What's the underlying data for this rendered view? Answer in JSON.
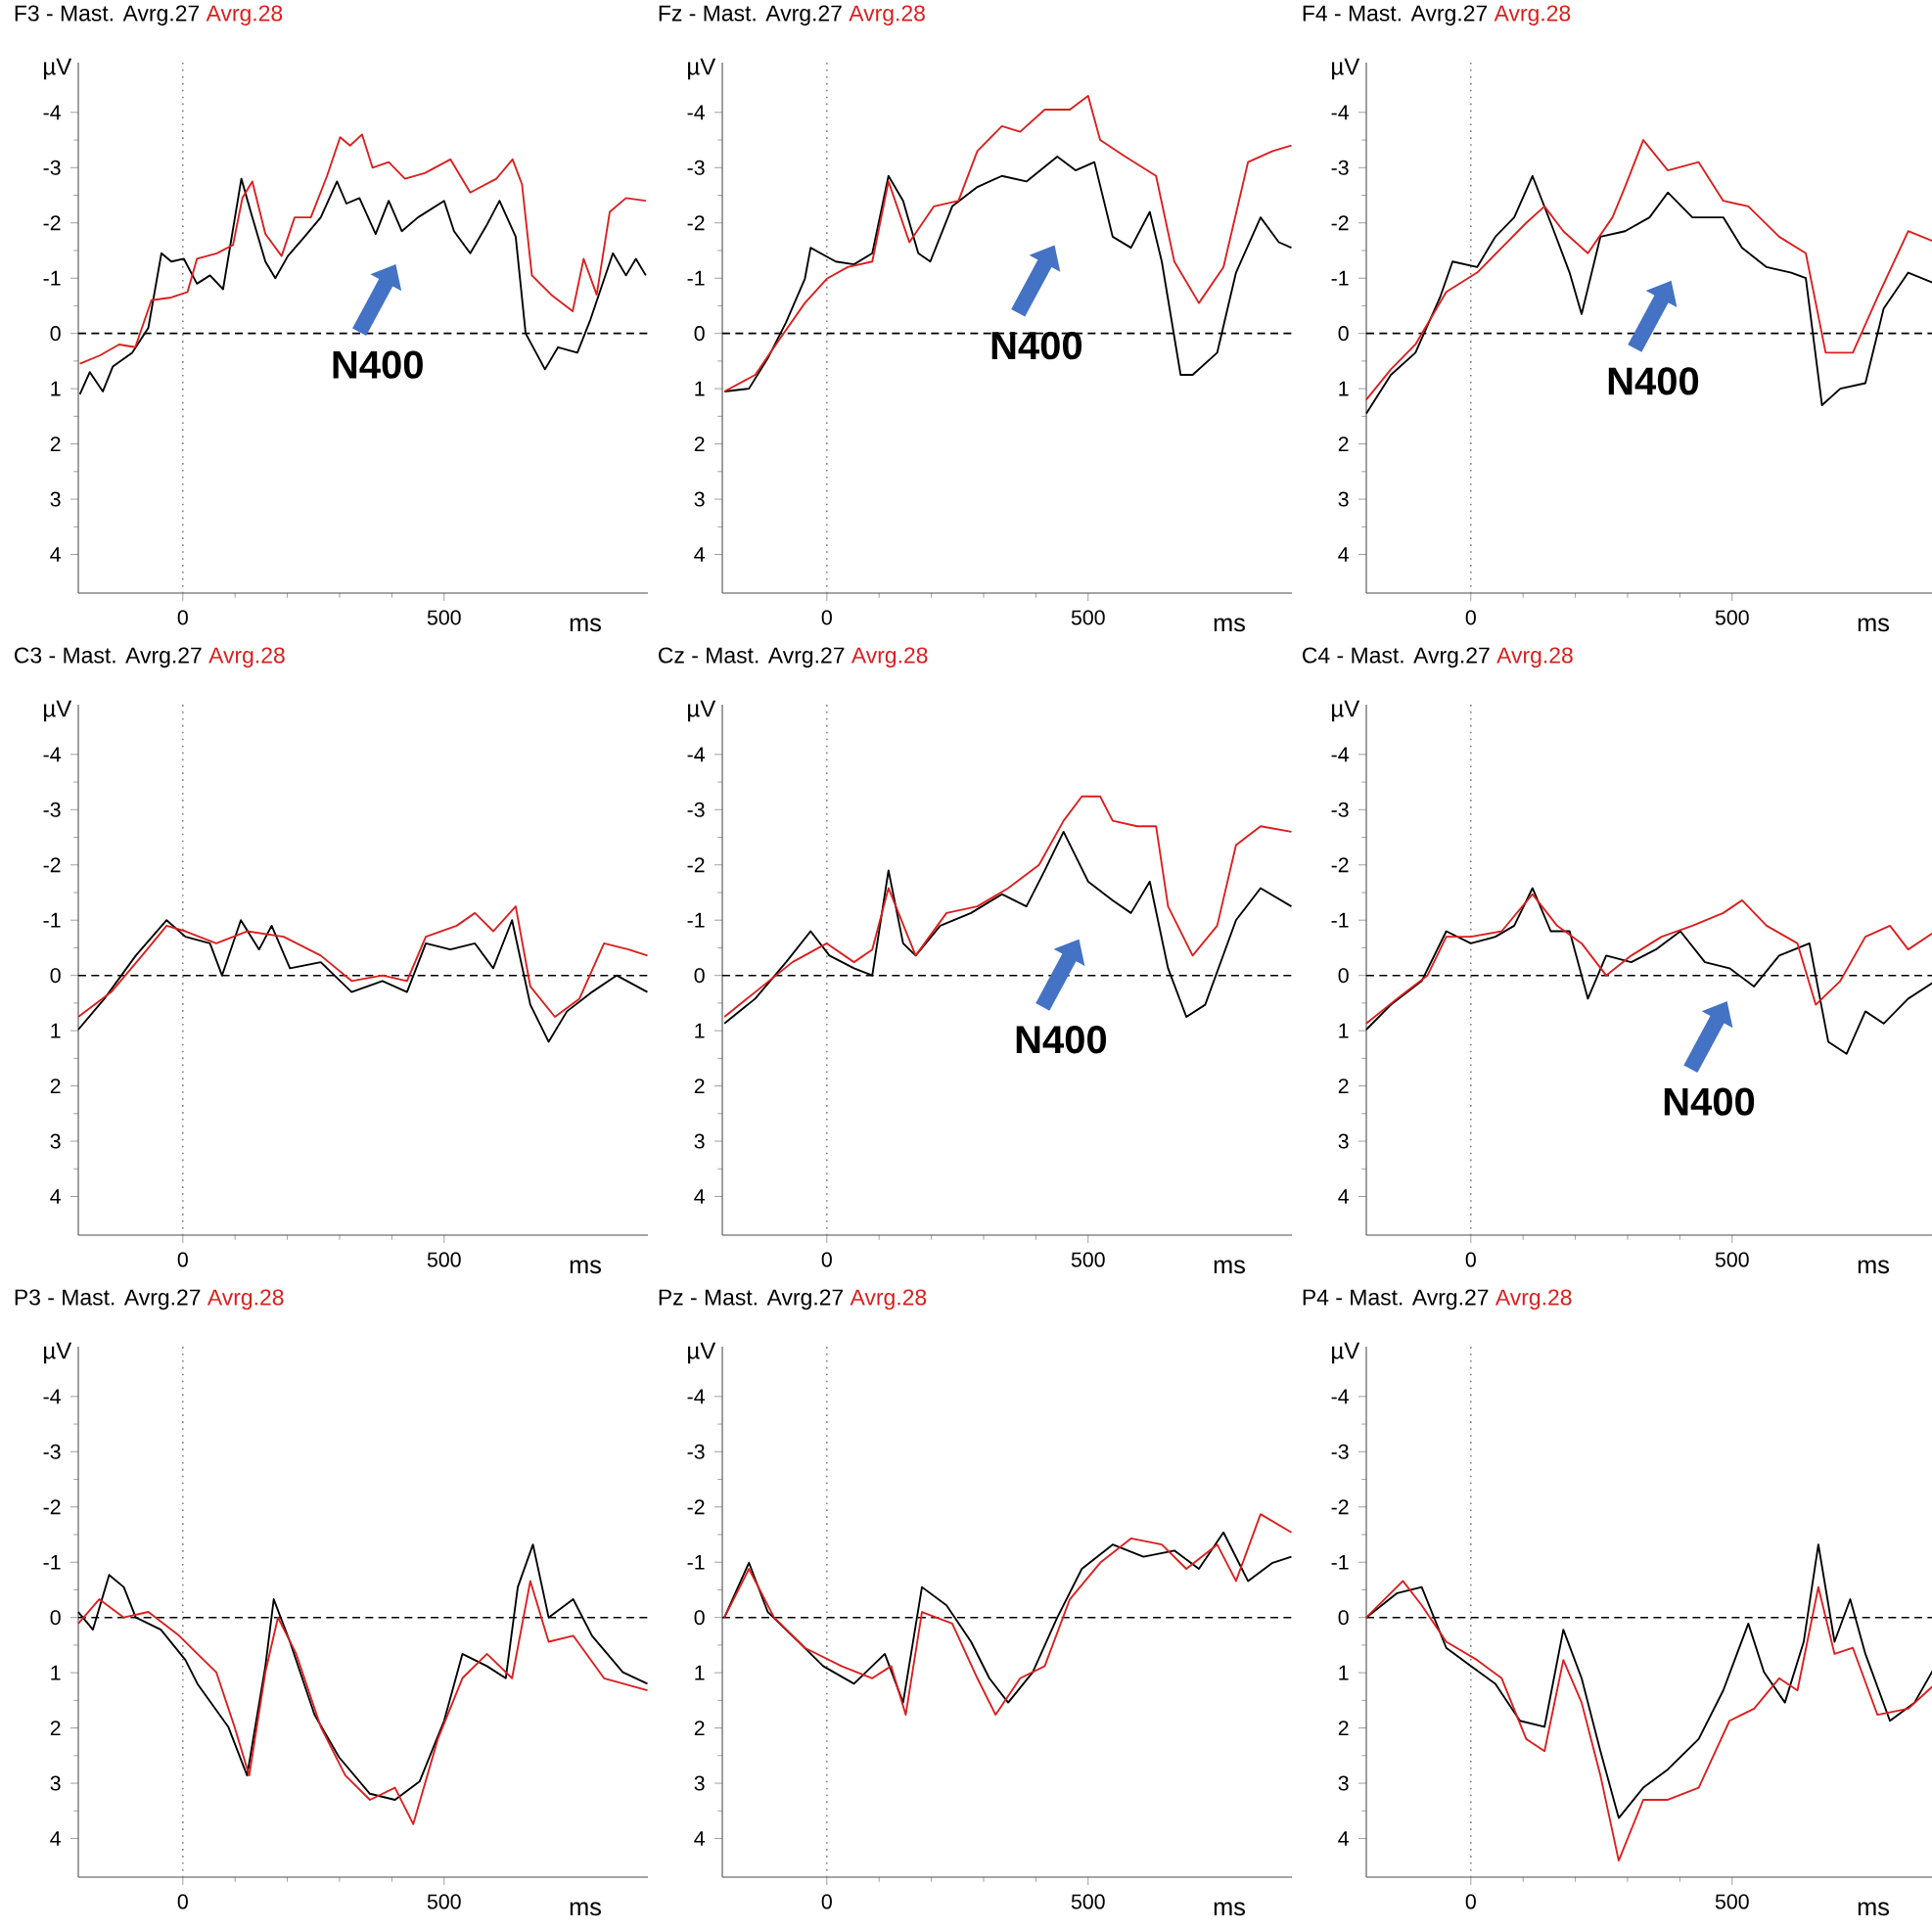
{
  "chart_data": [
    {
      "type": "line",
      "title": "F3 -",
      "xlabel": "ms",
      "ylabel": "µV",
      "xlim": [
        -200,
        890
      ],
      "ylim": [
        4.7,
        -4.9
      ],
      "xticks": [
        0,
        500
      ],
      "yticks": [
        -4,
        -3,
        -2,
        -1,
        0,
        1,
        2,
        3,
        4
      ],
      "ref_lines": [
        {
          "axis": "x",
          "value": 0,
          "color": "#808080",
          "line_style": "dotted"
        },
        {
          "axis": "y",
          "value": 0,
          "color": "#000000",
          "line_style": "dashed"
        }
      ],
      "annotations": [
        "N400"
      ],
      "series": [
        {
          "name": "Mast. Avrg.27",
          "color": "#000000",
          "x": [
            -197,
            -178,
            -153,
            -134,
            -97,
            -66,
            -41,
            -22,
            2,
            27,
            52,
            77,
            112,
            133,
            158,
            177,
            201,
            233,
            264,
            295,
            313,
            338,
            369,
            394,
            419,
            450,
            500,
            519,
            550,
            581,
            606,
            637,
            656,
            693,
            718,
            755,
            780,
            823,
            848,
            867,
            886
          ],
          "values": [
            1.1,
            0.7,
            1.05,
            0.6,
            0.35,
            -0.1,
            -1.45,
            -1.3,
            -1.35,
            -0.9,
            -1.05,
            -0.8,
            -2.8,
            -2.1,
            -1.3,
            -1.0,
            -1.4,
            -1.75,
            -2.1,
            -2.75,
            -2.35,
            -2.45,
            -1.8,
            -2.4,
            -1.85,
            -2.1,
            -2.4,
            -1.85,
            -1.45,
            -1.95,
            -2.4,
            -1.75,
            0,
            0.65,
            0.25,
            0.35,
            -0.25,
            -1.45,
            -1.05,
            -1.35,
            -1.05
          ]
        },
        {
          "name": "Avrg.28",
          "color": "#dc1e1e",
          "x": [
            -197,
            -159,
            -122,
            -91,
            -60,
            -22,
            9,
            27,
            65,
            96,
            114,
            133,
            158,
            189,
            214,
            245,
            276,
            301,
            320,
            343,
            363,
            394,
            425,
            463,
            512,
            550,
            600,
            631,
            649,
            668,
            705,
            746,
            767,
            792,
            817,
            848,
            886
          ],
          "values": [
            0.55,
            0.4,
            0.2,
            0.25,
            -0.6,
            -0.65,
            -0.75,
            -1.35,
            -1.45,
            -1.6,
            -2.45,
            -2.75,
            -1.8,
            -1.4,
            -2.1,
            -2.1,
            -2.85,
            -3.55,
            -3.4,
            -3.6,
            -3.0,
            -3.1,
            -2.8,
            -2.9,
            -3.15,
            -2.55,
            -2.8,
            -3.15,
            -2.7,
            -1.05,
            -0.7,
            -0.4,
            -1.35,
            -0.7,
            -2.2,
            -2.45,
            -2.4
          ]
        }
      ]
    },
    {
      "type": "line",
      "title": "Fz -",
      "xlabel": "ms",
      "ylabel": "µV",
      "xlim": [
        -200,
        890
      ],
      "ylim": [
        4.7,
        -4.9
      ],
      "xticks": [
        0,
        500
      ],
      "yticks": [
        -4,
        -3,
        -2,
        -1,
        0,
        1,
        2,
        3,
        4
      ],
      "ref_lines": [
        {
          "axis": "x",
          "value": 0,
          "color": "#808080",
          "line_style": "dotted"
        },
        {
          "axis": "y",
          "value": 0,
          "color": "#000000",
          "line_style": "dashed"
        }
      ],
      "annotations": [
        "N400"
      ],
      "series": [
        {
          "name": "Mast. Avrg.27",
          "color": "#000000",
          "x": [
            -196,
            -149,
            -113,
            -78,
            -42,
            -31,
            17,
            52,
            87,
            118,
            146,
            175,
            198,
            240,
            288,
            335,
            382,
            441,
            476,
            512,
            547,
            582,
            618,
            641,
            677,
            700,
            747,
            783,
            830,
            865,
            889
          ],
          "values": [
            1.05,
            1.0,
            0.45,
            -0.2,
            -0.99,
            -1.55,
            -1.3,
            -1.25,
            -1.45,
            -2.85,
            -2.4,
            -1.45,
            -1.3,
            -2.3,
            -2.65,
            -2.85,
            -2.75,
            -3.2,
            -2.95,
            -3.1,
            -1.75,
            -1.55,
            -2.2,
            -1.3,
            0.75,
            0.75,
            0.35,
            -1.1,
            -2.1,
            -1.65,
            -1.55
          ]
        },
        {
          "name": "Avrg.28",
          "color": "#dc1e1e",
          "x": [
            -196,
            -137,
            -90,
            -42,
            0,
            40,
            87,
            118,
            158,
            205,
            252,
            288,
            335,
            370,
            417,
            465,
            500,
            523,
            571,
            630,
            665,
            712,
            759,
            806,
            853,
            889
          ],
          "values": [
            1.05,
            0.75,
            0.1,
            -0.55,
            -0.99,
            -1.2,
            -1.3,
            -2.75,
            -1.65,
            -2.3,
            -2.4,
            -3.3,
            -3.75,
            -3.65,
            -4.05,
            -4.05,
            -4.3,
            -3.5,
            -3.2,
            -2.85,
            -1.3,
            -0.55,
            -1.2,
            -3.1,
            -3.3,
            -3.4
          ]
        }
      ]
    },
    {
      "type": "line",
      "title": "F4 -",
      "xlabel": "ms",
      "ylabel": "µV",
      "xlim": [
        -200,
        890
      ],
      "ylim": [
        4.7,
        -4.9
      ],
      "xticks": [
        0,
        500
      ],
      "yticks": [
        -4,
        -3,
        -2,
        -1,
        0,
        1,
        2,
        3,
        4
      ],
      "ref_lines": [
        {
          "axis": "x",
          "value": 0,
          "color": "#808080",
          "line_style": "dotted"
        },
        {
          "axis": "y",
          "value": 0,
          "color": "#000000",
          "line_style": "dashed"
        }
      ],
      "annotations": [
        "N400"
      ],
      "series": [
        {
          "name": "Mast. Avrg.27",
          "color": "#000000",
          "x": [
            -200,
            -153,
            -106,
            -59,
            -35,
            12,
            47,
            83,
            118,
            153,
            189,
            212,
            248,
            295,
            342,
            377,
            424,
            483,
            519,
            566,
            613,
            641,
            672,
            707,
            755,
            790,
            837,
            889
          ],
          "values": [
            1.45,
            0.75,
            0.35,
            -0.65,
            -1.3,
            -1.2,
            -1.75,
            -2.1,
            -2.85,
            -2.0,
            -1.1,
            -0.35,
            -1.75,
            -1.85,
            -2.1,
            -2.55,
            -2.1,
            -2.1,
            -1.55,
            -1.2,
            -1.1,
            -1.0,
            1.3,
            1.0,
            0.9,
            -0.45,
            -1.1,
            -0.9
          ]
        },
        {
          "name": "Avrg.28",
          "color": "#dc1e1e",
          "x": [
            -200,
            -153,
            -106,
            -47,
            12,
            59,
            106,
            141,
            177,
            224,
            271,
            295,
            330,
            377,
            436,
            483,
            531,
            590,
            641,
            679,
            731,
            778,
            837,
            889
          ],
          "values": [
            1.2,
            0.65,
            0.2,
            -0.75,
            -1.1,
            -1.55,
            -2.0,
            -2.3,
            -1.85,
            -1.45,
            -2.1,
            -2.65,
            -3.5,
            -2.95,
            -3.1,
            -2.4,
            -2.3,
            -1.75,
            -1.45,
            0.35,
            0.35,
            -0.65,
            -1.85,
            -1.65
          ]
        }
      ]
    },
    {
      "type": "line",
      "title": "C3 -",
      "xlabel": "ms",
      "ylabel": "µV",
      "xlim": [
        -200,
        890
      ],
      "ylim": [
        4.7,
        -4.9
      ],
      "xticks": [
        0,
        500
      ],
      "yticks": [
        -4,
        -3,
        -2,
        -1,
        0,
        1,
        2,
        3,
        4
      ],
      "ref_lines": [
        {
          "axis": "x",
          "value": 0,
          "color": "#808080",
          "line_style": "dotted"
        },
        {
          "axis": "y",
          "value": 0,
          "color": "#000000",
          "line_style": "dashed"
        }
      ],
      "series": [
        {
          "name": "Mast. Avrg.27",
          "color": "#000000",
          "x": [
            -200,
            -150,
            -90,
            -31,
            5,
            52,
            75,
            111,
            146,
            170,
            205,
            264,
            323,
            382,
            429,
            465,
            512,
            559,
            594,
            630,
            665,
            700,
            735,
            783,
            830,
            889
          ],
          "values": [
            0.98,
            0.42,
            -0.36,
            -1.0,
            -0.7,
            -0.58,
            0,
            -1.0,
            -0.47,
            -0.9,
            -0.13,
            -0.24,
            0.3,
            0.1,
            0.3,
            -0.58,
            -0.47,
            -0.58,
            -0.13,
            -1.0,
            0.53,
            1.2,
            0.65,
            0.3,
            0,
            0.3
          ]
        },
        {
          "name": "Avrg.28",
          "color": "#dc1e1e",
          "x": [
            -200,
            -137,
            -78,
            -31,
            5,
            64,
            123,
            193,
            264,
            323,
            382,
            429,
            465,
            524,
            559,
            594,
            637,
            665,
            712,
            759,
            806,
            853,
            889
          ],
          "values": [
            0.75,
            0.3,
            -0.36,
            -0.9,
            -0.8,
            -0.58,
            -0.8,
            -0.7,
            -0.36,
            0.1,
            0,
            0.1,
            -0.7,
            -0.9,
            -1.13,
            -0.8,
            -1.25,
            0.2,
            0.75,
            0.42,
            -0.58,
            -0.47,
            -0.36
          ]
        }
      ]
    },
    {
      "type": "line",
      "title": "Cz -",
      "xlabel": "ms",
      "ylabel": "µV",
      "xlim": [
        -200,
        890
      ],
      "ylim": [
        4.7,
        -4.9
      ],
      "xticks": [
        0,
        500
      ],
      "yticks": [
        -4,
        -3,
        -2,
        -1,
        0,
        1,
        2,
        3,
        4
      ],
      "ref_lines": [
        {
          "axis": "x",
          "value": 0,
          "color": "#808080",
          "line_style": "dotted"
        },
        {
          "axis": "y",
          "value": 0,
          "color": "#000000",
          "line_style": "dashed"
        }
      ],
      "annotations": [
        "N400"
      ],
      "series": [
        {
          "name": "Mast. Avrg.27",
          "color": "#000000",
          "x": [
            -196,
            -137,
            -78,
            -31,
            5,
            52,
            87,
            118,
            146,
            170,
            217,
            276,
            335,
            382,
            417,
            453,
            500,
            547,
            582,
            618,
            653,
            688,
            724,
            783,
            830,
            889
          ],
          "values": [
            0.87,
            0.42,
            -0.24,
            -0.8,
            -0.36,
            -0.13,
            0,
            -1.9,
            -0.58,
            -0.36,
            -0.9,
            -1.13,
            -1.47,
            -1.25,
            -1.9,
            -2.6,
            -1.7,
            -1.36,
            -1.13,
            -1.7,
            -0.13,
            0.75,
            0.53,
            -1.0,
            -1.58,
            -1.25
          ]
        },
        {
          "name": "Avrg.28",
          "color": "#dc1e1e",
          "x": [
            -196,
            -137,
            -66,
            0,
            52,
            87,
            118,
            170,
            229,
            288,
            347,
            406,
            453,
            488,
            523,
            547,
            594,
            630,
            653,
            700,
            747,
            783,
            830,
            889
          ],
          "values": [
            0.75,
            0.3,
            -0.24,
            -0.58,
            -0.24,
            -0.47,
            -1.58,
            -0.36,
            -1.13,
            -1.25,
            -1.58,
            -2.0,
            -2.8,
            -3.24,
            -3.24,
            -2.8,
            -2.7,
            -2.7,
            -1.25,
            -0.36,
            -0.9,
            -2.36,
            -2.7,
            -2.6
          ]
        }
      ]
    },
    {
      "type": "line",
      "title": "C4 -",
      "xlabel": "ms",
      "ylabel": "µV",
      "xlim": [
        -200,
        890
      ],
      "ylim": [
        4.7,
        -4.9
      ],
      "xticks": [
        0,
        500
      ],
      "yticks": [
        -4,
        -3,
        -2,
        -1,
        0,
        1,
        2,
        3,
        4
      ],
      "ref_lines": [
        {
          "axis": "x",
          "value": 0,
          "color": "#808080",
          "line_style": "dotted"
        },
        {
          "axis": "y",
          "value": 0,
          "color": "#000000",
          "line_style": "dashed"
        }
      ],
      "annotations": [
        "N400"
      ],
      "series": [
        {
          "name": "Mast. Avrg.27",
          "color": "#000000",
          "x": [
            -200,
            -153,
            -94,
            -47,
            0,
            47,
            83,
            118,
            153,
            189,
            224,
            259,
            307,
            354,
            401,
            448,
            495,
            542,
            590,
            648,
            684,
            719,
            755,
            790,
            837,
            889
          ],
          "values": [
            0.98,
            0.53,
            0.1,
            -0.8,
            -0.58,
            -0.7,
            -0.9,
            -1.58,
            -0.8,
            -0.8,
            0.42,
            -0.36,
            -0.24,
            -0.47,
            -0.8,
            -0.24,
            -0.13,
            0.2,
            -0.36,
            -0.58,
            1.2,
            1.42,
            0.65,
            0.87,
            0.42,
            0.1
          ]
        },
        {
          "name": "Avrg.28",
          "color": "#dc1e1e",
          "x": [
            -200,
            -141,
            -83,
            -47,
            0,
            59,
            118,
            165,
            212,
            259,
            307,
            365,
            424,
            483,
            519,
            566,
            625,
            660,
            707,
            755,
            802,
            837,
            889
          ],
          "values": [
            0.87,
            0.42,
            0,
            -0.7,
            -0.7,
            -0.8,
            -1.47,
            -0.9,
            -0.58,
            0,
            -0.36,
            -0.7,
            -0.9,
            -1.13,
            -1.36,
            -0.9,
            -0.58,
            0.53,
            0.1,
            -0.7,
            -0.9,
            -0.47,
            -0.8
          ]
        }
      ]
    },
    {
      "type": "line",
      "title": "P3 -",
      "xlabel": "ms",
      "ylabel": "µV",
      "xlim": [
        -200,
        890
      ],
      "ylim": [
        4.7,
        -4.9
      ],
      "xticks": [
        0,
        500
      ],
      "yticks": [
        -4,
        -3,
        -2,
        -1,
        0,
        1,
        2,
        3,
        4
      ],
      "ref_lines": [
        {
          "axis": "x",
          "value": 0,
          "color": "#808080",
          "line_style": "dotted"
        },
        {
          "axis": "y",
          "value": 0,
          "color": "#000000",
          "line_style": "dashed"
        }
      ],
      "series": [
        {
          "name": "Mast. Avrg.27",
          "color": "#000000",
          "x": [
            -200,
            -172,
            -141,
            -113,
            -90,
            -42,
            5,
            28,
            87,
            123,
            158,
            174,
            205,
            252,
            299,
            358,
            406,
            453,
            500,
            535,
            582,
            618,
            641,
            670,
            700,
            747,
            783,
            842,
            889
          ],
          "values": [
            -0.1,
            0.22,
            -0.77,
            -0.55,
            0,
            0.22,
            0.77,
            1.2,
            1.98,
            2.86,
            0.88,
            -0.33,
            0.44,
            1.76,
            2.53,
            3.19,
            3.3,
            2.97,
            1.87,
            0.66,
            0.88,
            1.1,
            -0.55,
            -1.32,
            0,
            -0.33,
            0.33,
            0.99,
            1.2
          ]
        },
        {
          "name": "Avrg.28",
          "color": "#dc1e1e",
          "x": [
            -200,
            -160,
            -113,
            -66,
            -7,
            28,
            64,
            99,
            127,
            158,
            182,
            217,
            264,
            311,
            358,
            406,
            441,
            488,
            535,
            582,
            630,
            665,
            700,
            747,
            806,
            889
          ],
          "values": [
            0.11,
            -0.33,
            0,
            -0.1,
            0.33,
            0.66,
            0.99,
            1.98,
            2.86,
            0.99,
            0,
            0.66,
            1.98,
            2.86,
            3.3,
            3.08,
            3.74,
            2.2,
            1.1,
            0.66,
            1.1,
            -0.66,
            0.44,
            0.33,
            1.1,
            1.32
          ]
        }
      ]
    },
    {
      "type": "line",
      "title": "Pz -",
      "xlabel": "ms",
      "ylabel": "µV",
      "xlim": [
        -200,
        890
      ],
      "ylim": [
        4.7,
        -4.9
      ],
      "xticks": [
        0,
        500
      ],
      "yticks": [
        -4,
        -3,
        -2,
        -1,
        0,
        1,
        2,
        3,
        4
      ],
      "ref_lines": [
        {
          "axis": "x",
          "value": 0,
          "color": "#808080",
          "line_style": "dotted"
        },
        {
          "axis": "y",
          "value": 0,
          "color": "#000000",
          "line_style": "dashed"
        }
      ],
      "series": [
        {
          "name": "Mast. Avrg.27",
          "color": "#000000",
          "x": [
            -196,
            -149,
            -113,
            -54,
            -7,
            52,
            111,
            146,
            182,
            229,
            276,
            311,
            347,
            394,
            441,
            488,
            547,
            606,
            665,
            712,
            759,
            806,
            853,
            889
          ],
          "values": [
            0,
            -0.99,
            -0.1,
            0.44,
            0.88,
            1.2,
            0.66,
            1.54,
            -0.55,
            -0.22,
            0.44,
            1.1,
            1.54,
            0.99,
            0,
            -0.88,
            -1.32,
            -1.1,
            -1.21,
            -0.88,
            -1.54,
            -0.66,
            -0.99,
            -1.1
          ]
        },
        {
          "name": "Avrg.28",
          "color": "#dc1e1e",
          "x": [
            -196,
            -149,
            -101,
            -42,
            28,
            87,
            123,
            151,
            182,
            240,
            288,
            323,
            370,
            417,
            465,
            523,
            582,
            641,
            688,
            747,
            783,
            830,
            889
          ],
          "values": [
            0,
            -0.88,
            0,
            0.55,
            0.88,
            1.1,
            0.88,
            1.76,
            -0.1,
            0.11,
            1.1,
            1.76,
            1.1,
            0.88,
            -0.33,
            -0.99,
            -1.43,
            -1.32,
            -0.88,
            -1.32,
            -0.66,
            -1.87,
            -1.54
          ]
        }
      ]
    },
    {
      "type": "line",
      "title": "P4 -",
      "xlabel": "ms",
      "ylabel": "µV",
      "xlim": [
        -200,
        890
      ],
      "ylim": [
        4.7,
        -4.9
      ],
      "xticks": [
        0,
        500
      ],
      "yticks": [
        -4,
        -3,
        -2,
        -1,
        0,
        1,
        2,
        3,
        4
      ],
      "ref_lines": [
        {
          "axis": "x",
          "value": 0,
          "color": "#808080",
          "line_style": "dotted"
        },
        {
          "axis": "y",
          "value": 0,
          "color": "#000000",
          "line_style": "dashed"
        }
      ],
      "series": [
        {
          "name": "Mast. Avrg.27",
          "color": "#000000",
          "x": [
            -200,
            -141,
            -94,
            -47,
            0,
            47,
            94,
            141,
            177,
            212,
            248,
            283,
            330,
            377,
            436,
            483,
            531,
            561,
            601,
            637,
            665,
            696,
            726,
            755,
            802,
            849,
            889
          ],
          "values": [
            0,
            -0.44,
            -0.55,
            0.55,
            0.88,
            1.2,
            1.87,
            1.98,
            0.22,
            1.1,
            2.42,
            3.63,
            3.08,
            2.75,
            2.2,
            1.32,
            0.11,
            0.99,
            1.54,
            0.44,
            -1.32,
            0.44,
            -0.33,
            0.66,
            1.87,
            1.54,
            0.88
          ]
        },
        {
          "name": "Avrg.28",
          "color": "#dc1e1e",
          "x": [
            -200,
            -130,
            -94,
            -47,
            12,
            59,
            106,
            141,
            177,
            212,
            248,
            283,
            330,
            377,
            436,
            495,
            542,
            590,
            625,
            665,
            696,
            731,
            778,
            837,
            889
          ],
          "values": [
            0,
            -0.66,
            -0.22,
            0.44,
            0.77,
            1.1,
            2.2,
            2.42,
            0.77,
            1.54,
            2.86,
            4.4,
            3.3,
            3.3,
            3.08,
            1.87,
            1.65,
            1.1,
            1.32,
            -0.55,
            0.66,
            0.55,
            1.76,
            1.65,
            1.2
          ]
        }
      ]
    }
  ]
}
